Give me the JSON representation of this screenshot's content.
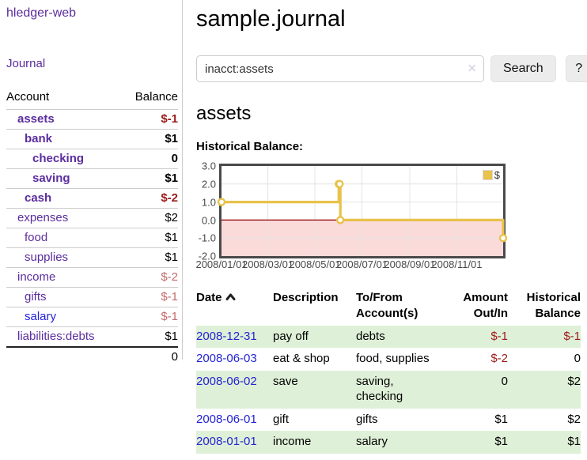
{
  "sidebar": {
    "brand": "hledger-web",
    "journal_link": "Journal",
    "accounts": {
      "col_account": "Account",
      "col_balance": "Balance",
      "rows": [
        {
          "name": "assets",
          "balance": "$-1"
        },
        {
          "name": "bank",
          "balance": "$1"
        },
        {
          "name": "checking",
          "balance": "0"
        },
        {
          "name": "saving",
          "balance": "$1"
        },
        {
          "name": "cash",
          "balance": "$-2"
        },
        {
          "name": "expenses",
          "balance": "$2"
        },
        {
          "name": "food",
          "balance": "$1"
        },
        {
          "name": "supplies",
          "balance": "$1"
        },
        {
          "name": "income",
          "balance": "$-2"
        },
        {
          "name": "gifts",
          "balance": "$-1"
        },
        {
          "name": "salary",
          "balance": "$-1"
        },
        {
          "name": "liabilities:debts",
          "balance": "$1"
        }
      ],
      "total": "0"
    }
  },
  "header": {
    "title": "sample.journal"
  },
  "search": {
    "value": "inacct:assets",
    "clear_icon": "✕",
    "button_label": "Search",
    "help_label": "?"
  },
  "account_page": {
    "heading": "assets",
    "chart_title": "Historical Balance:"
  },
  "chart_data": {
    "type": "line",
    "title": "Historical Balance:",
    "legend": [
      {
        "label": "$",
        "color": "#e8c24a"
      }
    ],
    "series": [
      {
        "name": "$",
        "steps": true,
        "points": [
          [
            "2008-01-01",
            1
          ],
          [
            "2008-06-01",
            2
          ],
          [
            "2008-06-02",
            2
          ],
          [
            "2008-06-03",
            0
          ],
          [
            "2008-12-31",
            -1
          ]
        ]
      }
    ],
    "ylim": [
      -2,
      3
    ],
    "y_ticks": [
      "3.0",
      "2.0",
      "1.0",
      "0.0",
      "-1.0",
      "-2.0"
    ],
    "x_ticks": [
      "2008/01/01",
      "2008/03/01",
      "2008/05/01",
      "2008/07/01",
      "2008/09/01",
      "2008/11/01"
    ],
    "x_range": [
      "2008-01-01",
      "2008-12-31"
    ],
    "grid": true,
    "legend_position": "top-right",
    "line_color": "#e8c24a",
    "zero_line_color": "#8b0000",
    "negative_region_color": "#fbdada"
  },
  "register": {
    "columns": [
      "Date",
      "Description",
      "To/From Account(s)",
      "Amount Out/In",
      "Historical Balance"
    ],
    "rows": [
      {
        "date": "2008-12-31",
        "description": "pay off",
        "accounts": "debts",
        "amount": "$-1",
        "balance": "$-1"
      },
      {
        "date": "2008-06-03",
        "description": "eat & shop",
        "accounts": "food, supplies",
        "amount": "$-2",
        "balance": "0"
      },
      {
        "date": "2008-06-02",
        "description": "save",
        "accounts": "saving, checking",
        "amount": "0",
        "balance": "$2"
      },
      {
        "date": "2008-06-01",
        "description": "gift",
        "accounts": "gifts",
        "amount": "$1",
        "balance": "$2"
      },
      {
        "date": "2008-01-01",
        "description": "income",
        "accounts": "salary",
        "amount": "$1",
        "balance": "$1"
      }
    ]
  }
}
